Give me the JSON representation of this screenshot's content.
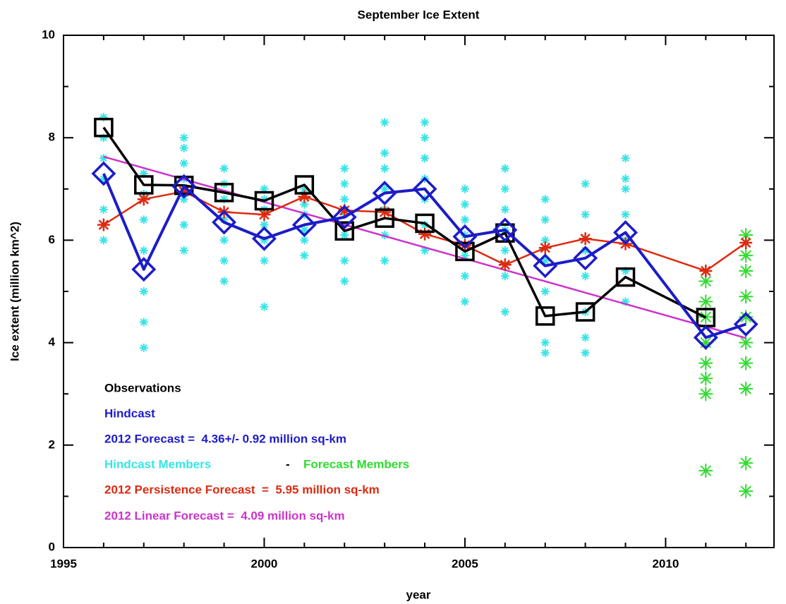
{
  "chart_data": {
    "type": "line",
    "title": "September Ice Extent",
    "x_label": "year",
    "y_label": "Ice extent (million km^2)",
    "xlim": [
      1995,
      2012.7
    ],
    "xticks": [
      1995,
      2000,
      2005,
      2010
    ],
    "xminorticks": [
      1996,
      1997,
      1998,
      1999,
      2001,
      2002,
      2003,
      2004,
      2006,
      2007,
      2008,
      2009,
      2011,
      2012
    ],
    "ylim": [
      0,
      10
    ],
    "yticks": [
      0,
      2,
      4,
      6,
      8,
      10
    ],
    "yminorticks": [
      1,
      3,
      5,
      7,
      9
    ],
    "grid": false,
    "legend_position": "lower left",
    "legend_separator": "-",
    "annotations": [
      {
        "text": "2012 Forecast =  4.36+/- 0.92 million sq-km",
        "color": "#1c1cc8"
      }
    ],
    "series": [
      {
        "name": "Hindcast Members",
        "color": "#38e4e4",
        "marker": "asterisk",
        "line": false,
        "x": [
          1996,
          1996,
          1996,
          1996,
          1996,
          1996,
          1996,
          1997,
          1997,
          1997,
          1997,
          1997,
          1997,
          1997,
          1998,
          1998,
          1998,
          1998,
          1998,
          1998,
          1998,
          1999,
          1999,
          1999,
          1999,
          1999,
          1999,
          1999,
          2000,
          2000,
          2000,
          2000,
          2000,
          2000,
          2000,
          2001,
          2001,
          2001,
          2001,
          2001,
          2001,
          2001,
          2002,
          2002,
          2002,
          2002,
          2002,
          2002,
          2002,
          2003,
          2003,
          2003,
          2003,
          2003,
          2003,
          2003,
          2004,
          2004,
          2004,
          2004,
          2004,
          2004,
          2004,
          2005,
          2005,
          2005,
          2005,
          2005,
          2005,
          2005,
          2006,
          2006,
          2006,
          2006,
          2006,
          2006,
          2006,
          2007,
          2007,
          2007,
          2007,
          2007,
          2007,
          2007,
          2008,
          2008,
          2008,
          2008,
          2008,
          2008,
          2008,
          2009,
          2009,
          2009,
          2009,
          2009,
          2009,
          2009
        ],
        "values": [
          6.0,
          6.3,
          6.6,
          7.2,
          7.6,
          8.0,
          8.4,
          3.9,
          4.4,
          5.0,
          5.8,
          6.4,
          6.9,
          7.3,
          5.8,
          6.3,
          6.8,
          7.2,
          7.5,
          7.8,
          8.0,
          5.2,
          5.6,
          6.0,
          6.4,
          6.8,
          7.1,
          7.4,
          4.7,
          5.6,
          6.0,
          6.3,
          6.6,
          6.8,
          7.0,
          5.7,
          6.0,
          6.2,
          6.5,
          6.7,
          6.9,
          7.0,
          5.2,
          5.6,
          6.1,
          6.5,
          6.8,
          7.1,
          7.4,
          5.6,
          6.1,
          6.6,
          7.0,
          7.4,
          7.7,
          8.3,
          5.8,
          6.3,
          6.8,
          7.2,
          7.6,
          8.0,
          8.3,
          4.8,
          5.3,
          5.7,
          6.1,
          6.4,
          6.7,
          7.0,
          4.6,
          5.3,
          5.8,
          6.2,
          6.6,
          7.0,
          7.4,
          3.8,
          4.0,
          5.0,
          5.6,
          6.0,
          6.4,
          6.8,
          3.8,
          4.1,
          4.6,
          5.3,
          5.8,
          6.5,
          7.1,
          4.8,
          5.4,
          6.0,
          6.5,
          7.0,
          7.2,
          7.6
        ]
      },
      {
        "name": "Forecast Members",
        "color": "#30dc30",
        "marker": "asterisk",
        "line": false,
        "x": [
          2011,
          2011,
          2011,
          2011,
          2011,
          2011,
          2011,
          2011,
          2012,
          2012,
          2012,
          2012,
          2012,
          2012,
          2012,
          2012,
          2012,
          2012
        ],
        "values": [
          1.5,
          3.0,
          3.3,
          3.6,
          4.0,
          4.5,
          4.8,
          5.2,
          1.1,
          1.65,
          3.1,
          3.6,
          4.0,
          4.5,
          4.9,
          5.4,
          5.7,
          6.1
        ]
      },
      {
        "name": "2012 Linear Forecast =  4.09 million sq-km",
        "color": "#cc33cc",
        "marker": "none",
        "line": true,
        "x": [
          1996,
          2012
        ],
        "values": [
          7.63,
          4.09
        ]
      },
      {
        "name": "2012 Persistence Forecast  =  5.95 million sq-km",
        "color": "#dd2a10",
        "marker": "asterisk",
        "line": true,
        "x": [
          1996,
          1997,
          1998,
          1999,
          2000,
          2001,
          2002,
          2003,
          2004,
          2005,
          2006,
          2007,
          2008,
          2009,
          2011,
          2012
        ],
        "values": [
          6.3,
          6.8,
          6.95,
          6.55,
          6.5,
          6.85,
          6.58,
          6.55,
          6.12,
          5.9,
          5.52,
          5.85,
          6.03,
          5.93,
          5.4,
          5.95
        ]
      },
      {
        "name": "Observations",
        "color": "#000000",
        "marker": "square",
        "line": true,
        "x": [
          1996,
          1997,
          1998,
          1999,
          2000,
          2001,
          2002,
          2003,
          2004,
          2005,
          2006,
          2007,
          2008,
          2009,
          2011
        ],
        "values": [
          8.2,
          7.08,
          7.07,
          6.93,
          6.77,
          7.08,
          6.18,
          6.43,
          6.33,
          5.78,
          6.14,
          4.52,
          4.6,
          5.28,
          4.49
        ]
      },
      {
        "name": "Hindcast",
        "color": "#1c1cc8",
        "marker": "diamond",
        "line": true,
        "x": [
          1996,
          1997,
          1998,
          1999,
          2000,
          2001,
          2002,
          2003,
          2004,
          2005,
          2006,
          2007,
          2008,
          2009,
          2011,
          2012
        ],
        "values": [
          7.3,
          5.43,
          7.05,
          6.35,
          6.03,
          6.3,
          6.45,
          6.92,
          7.0,
          6.07,
          6.2,
          5.5,
          5.65,
          6.15,
          4.1,
          4.36
        ]
      }
    ]
  }
}
